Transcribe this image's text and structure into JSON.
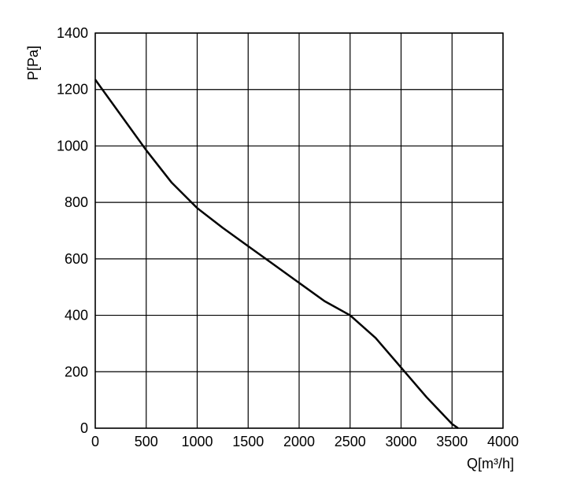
{
  "chart_data": {
    "type": "line",
    "x_label": "Q[m³/h]",
    "y_label": "P[Pa]",
    "x": [
      0,
      250,
      500,
      750,
      1000,
      1250,
      1500,
      1750,
      2000,
      2250,
      2500,
      2750,
      3000,
      3250,
      3500,
      3560
    ],
    "values": [
      1235,
      1110,
      985,
      870,
      780,
      710,
      645,
      580,
      515,
      450,
      400,
      320,
      215,
      110,
      15,
      0
    ],
    "color": "#000000",
    "xlim": [
      0,
      4000
    ],
    "xticks": [
      0,
      500,
      1000,
      1500,
      2000,
      2500,
      3000,
      3500,
      4000
    ],
    "ylim": [
      0,
      1400
    ],
    "yticks": [
      0,
      200,
      400,
      600,
      800,
      1000,
      1200,
      1400
    ],
    "grid": true
  }
}
